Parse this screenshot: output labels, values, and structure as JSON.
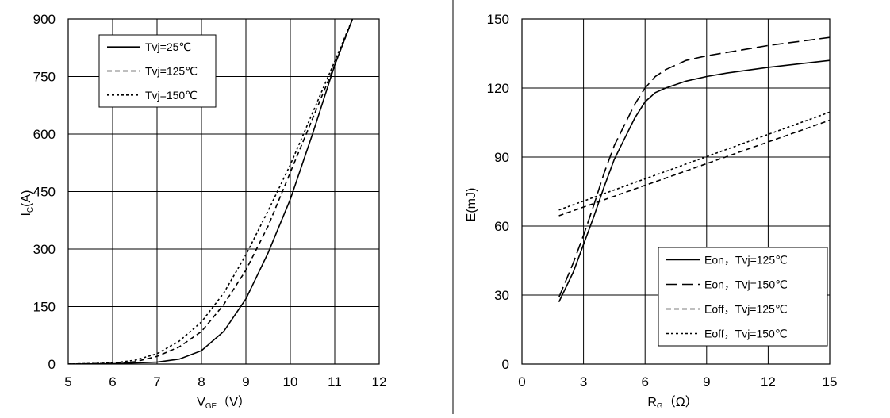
{
  "chart_data": [
    {
      "type": "line",
      "xlabel": {
        "main": "V",
        "sub": "GE",
        "suffix": "（V）"
      },
      "ylabel": {
        "main": "I",
        "sub": "C",
        "suffix": "(A)"
      },
      "xlim": [
        5,
        12
      ],
      "ylim": [
        0,
        900
      ],
      "xticks": [
        5,
        6,
        7,
        8,
        9,
        10,
        11,
        12
      ],
      "yticks": [
        0,
        150,
        300,
        450,
        600,
        750,
        900
      ],
      "grid": true,
      "legend_position": "top-left",
      "series": [
        {
          "name": "Tvj=25℃",
          "dash": "solid",
          "x": [
            5.0,
            6.0,
            7.0,
            7.5,
            8.0,
            8.5,
            9.0,
            9.5,
            10.0,
            10.5,
            11.0,
            11.4
          ],
          "y": [
            0,
            1,
            5,
            13,
            35,
            85,
            170,
            290,
            430,
            600,
            780,
            900
          ]
        },
        {
          "name": "Tvj=125℃",
          "dash": "dashed",
          "x": [
            5.0,
            6.0,
            6.5,
            7.0,
            7.5,
            8.0,
            8.5,
            9.0,
            9.5,
            10.0,
            10.5,
            11.0,
            11.4
          ],
          "y": [
            0,
            2,
            6,
            20,
            45,
            85,
            155,
            245,
            360,
            500,
            640,
            780,
            900
          ]
        },
        {
          "name": "Tvj=150℃",
          "dash": "dotted",
          "x": [
            5.0,
            6.0,
            6.5,
            7.0,
            7.5,
            8.0,
            8.5,
            9.0,
            9.5,
            10.0,
            10.5,
            11.0,
            11.4
          ],
          "y": [
            0,
            3,
            10,
            27,
            60,
            110,
            185,
            285,
            400,
            520,
            655,
            790,
            900
          ]
        }
      ]
    },
    {
      "type": "line",
      "xlabel": {
        "main": "R",
        "sub": "G",
        "suffix": "（Ω）"
      },
      "ylabel": {
        "main": "E(mJ)",
        "sub": "",
        "suffix": ""
      },
      "xlim": [
        0,
        15
      ],
      "ylim": [
        0,
        150
      ],
      "xticks": [
        0,
        3,
        6,
        9,
        12,
        15
      ],
      "yticks": [
        0,
        30,
        60,
        90,
        120,
        150
      ],
      "grid": true,
      "legend_position": "bottom-right",
      "series": [
        {
          "name": "Eon，Tvj=125℃",
          "dash": "solid",
          "x": [
            1.8,
            2.5,
            3.0,
            3.5,
            4.0,
            4.5,
            5.0,
            5.5,
            6.0,
            6.5,
            7.0,
            8.0,
            9.0,
            10.0,
            12.0,
            15.0
          ],
          "y": [
            27,
            40,
            52,
            64,
            77,
            89,
            98,
            107,
            114,
            118,
            120,
            123,
            125,
            126.5,
            129,
            132
          ]
        },
        {
          "name": "Eon，Tvj=150℃",
          "dash": "longdash",
          "x": [
            1.8,
            2.5,
            3.0,
            3.5,
            4.0,
            4.5,
            5.0,
            5.5,
            6.0,
            6.5,
            7.0,
            8.0,
            9.0,
            10.0,
            12.0,
            15.0
          ],
          "y": [
            29,
            44,
            56,
            69,
            83,
            95,
            104,
            113,
            120,
            125,
            128,
            132,
            134,
            135.5,
            138.5,
            142
          ]
        },
        {
          "name": "Eoff，Tvj=125℃",
          "dash": "dashed",
          "x": [
            1.8,
            15.0
          ],
          "y": [
            64.5,
            106
          ]
        },
        {
          "name": "Eoff，Tvj=150℃",
          "dash": "dotted",
          "x": [
            1.8,
            15.0
          ],
          "y": [
            67,
            109.5
          ]
        }
      ]
    }
  ]
}
